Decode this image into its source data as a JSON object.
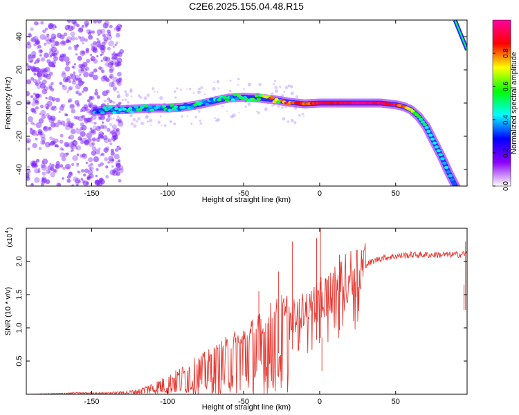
{
  "chart_data": [
    {
      "type": "heatmap",
      "title": "C2E6.2025.155.04.48.R15",
      "xlabel": "Height of straight line (km)",
      "ylabel": "Frequency (Hz)",
      "xlim": [
        -193,
        97
      ],
      "ylim": [
        -50,
        50
      ],
      "xticks": [
        -150,
        -100,
        -50,
        0,
        50
      ],
      "xtick_labels": [
        "-150",
        "-100",
        "-50",
        "0",
        "50"
      ],
      "yticks": [
        -40,
        -20,
        0,
        20,
        40
      ],
      "ytick_labels": [
        "-40",
        "-20",
        "0",
        "20",
        "40"
      ],
      "grid": false,
      "colorbar": {
        "label": "Normalized spectral amplitude",
        "range": [
          0,
          1
        ],
        "ticks": [
          0.0,
          0.2,
          0.4,
          0.6,
          0.8
        ],
        "tick_labels": [
          "0.0",
          "0.2",
          "0.4",
          "0.6",
          "0.8"
        ],
        "colormap": [
          "#ffffff",
          "#8c00ff",
          "#0000ff",
          "#00ffff",
          "#00ff00",
          "#ffff00",
          "#ff0000",
          "#ff00a0"
        ]
      },
      "ridge": {
        "x": [
          -148,
          -140,
          -130,
          -120,
          -110,
          -100,
          -90,
          -80,
          -70,
          -60,
          -50,
          -40,
          -30,
          -20,
          -10,
          0,
          10,
          20,
          30,
          40,
          50,
          55,
          60,
          65,
          70,
          75,
          80,
          85,
          90
        ],
        "y": [
          -5,
          -4,
          -4,
          -3.5,
          -3,
          -3,
          -2.5,
          -1,
          1,
          3,
          3.5,
          3,
          2,
          0.5,
          -0.5,
          0,
          0,
          0,
          0,
          0,
          -1,
          -2,
          -4,
          -8,
          -14,
          -23,
          -32,
          -42,
          -51
        ],
        "amplitude": [
          0.35,
          0.4,
          0.4,
          0.45,
          0.45,
          0.45,
          0.4,
          0.45,
          0.4,
          0.45,
          0.5,
          0.6,
          0.7,
          0.8,
          0.85,
          0.9,
          0.95,
          0.98,
          1.0,
          0.98,
          0.9,
          0.8,
          0.7,
          0.55,
          0.5,
          0.45,
          0.45,
          0.4,
          0.35
        ]
      },
      "noise_region_x": [
        -193,
        -130
      ],
      "corner_branch": {
        "x": [
          89,
          97
        ],
        "y": [
          50,
          32
        ]
      }
    },
    {
      "type": "line",
      "xlabel": "Height of straight line (km)",
      "ylabel": "SNR (10 * v/v)",
      "y_multiplier_label": "(x10",
      "y_multiplier_exp": "4",
      "y_multiplier_close": ")",
      "xlim": [
        -193,
        97
      ],
      "ylim": [
        0,
        2.5
      ],
      "xticks": [
        -150,
        -100,
        -50,
        0,
        50
      ],
      "xtick_labels": [
        "-150",
        "-100",
        "-50",
        "0",
        "50"
      ],
      "yticks": [
        0.5,
        1.0,
        1.5,
        2.0
      ],
      "ytick_labels": [
        "0.5",
        "1.0",
        "1.5",
        "2.0"
      ],
      "grid": false,
      "series": [
        {
          "color": "#e83a33",
          "envelope": {
            "x": [
              -193,
              -160,
              -140,
              -130,
              -120,
              -110,
              -100,
              -90,
              -80,
              -70,
              -60,
              -50,
              -40,
              -30,
              -20,
              -10,
              0,
              10,
              20,
              30,
              40,
              50,
              60,
              70,
              80,
              90,
              97
            ],
            "y": [
              0.0,
              0.02,
              0.02,
              0.03,
              0.05,
              0.12,
              0.2,
              0.3,
              0.4,
              0.5,
              0.62,
              0.75,
              0.85,
              1.0,
              1.1,
              1.25,
              1.4,
              1.55,
              1.75,
              1.95,
              2.05,
              2.08,
              2.1,
              2.1,
              2.1,
              2.1,
              2.12
            ]
          },
          "spikes": [
            {
              "x": 0.5,
              "y": 2.5
            },
            {
              "x": 1.5,
              "y": 0.35
            },
            {
              "x": -2,
              "y": 2.35
            },
            {
              "x": -18,
              "y": 2.3
            },
            {
              "x": 13,
              "y": 2.1
            },
            {
              "x": -40,
              "y": 1.55
            },
            {
              "x": -27,
              "y": 1.85
            },
            {
              "x": 95,
              "y": 1.65
            },
            {
              "x": 96,
              "y": 2.3
            }
          ]
        }
      ]
    }
  ]
}
